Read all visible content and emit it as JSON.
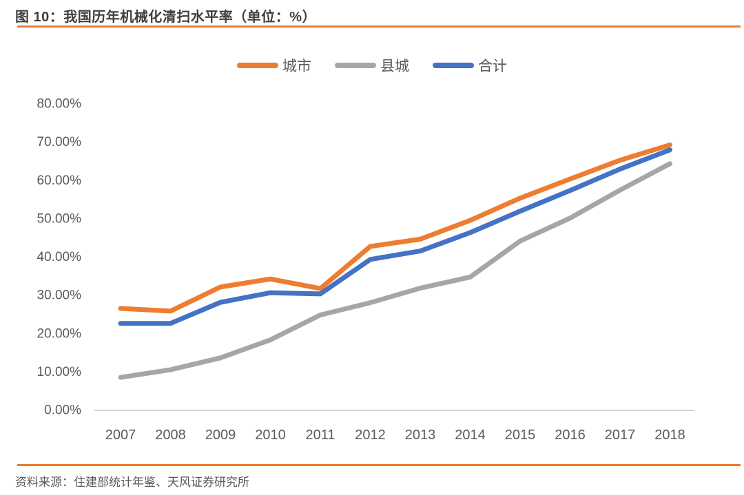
{
  "header": {
    "title": "图 10：我国历年机械化清扫水平率（单位：%）"
  },
  "footer": {
    "source": "资料来源：住建部统计年鉴、天风证券研究所"
  },
  "colors": {
    "accent_rule": "#ED7D31",
    "title_text": "#3F3F3F",
    "axis_text": "#595959",
    "axis_line": "#C6C6C6"
  },
  "chart_data": {
    "type": "line",
    "title": "我国历年机械化清扫水平率",
    "unit": "%",
    "categories": [
      "2007",
      "2008",
      "2009",
      "2010",
      "2011",
      "2012",
      "2013",
      "2014",
      "2015",
      "2016",
      "2017",
      "2018"
    ],
    "series": [
      {
        "name": "城市",
        "color": "#ED7D31",
        "values": [
          26.6,
          25.9,
          32.2,
          34.3,
          31.8,
          42.8,
          44.7,
          49.6,
          55.4,
          60.4,
          65.3,
          69.3
        ]
      },
      {
        "name": "县城",
        "color": "#A6A6A6",
        "values": [
          8.6,
          10.6,
          13.7,
          18.4,
          24.9,
          28.1,
          31.9,
          34.8,
          44.2,
          50.2,
          57.5,
          64.4
        ]
      },
      {
        "name": "合计",
        "color": "#4472C4",
        "values": [
          22.7,
          22.7,
          28.2,
          30.7,
          30.4,
          39.4,
          41.6,
          46.4,
          52.0,
          57.4,
          63.0,
          68.0
        ]
      }
    ],
    "ylim": [
      0,
      80
    ],
    "ytick_step": 10,
    "ytick_labels": [
      "0.00%",
      "10.00%",
      "20.00%",
      "30.00%",
      "40.00%",
      "50.00%",
      "60.00%",
      "70.00%",
      "80.00%"
    ],
    "legend_position": "top",
    "grid": false,
    "line_width": 7
  }
}
